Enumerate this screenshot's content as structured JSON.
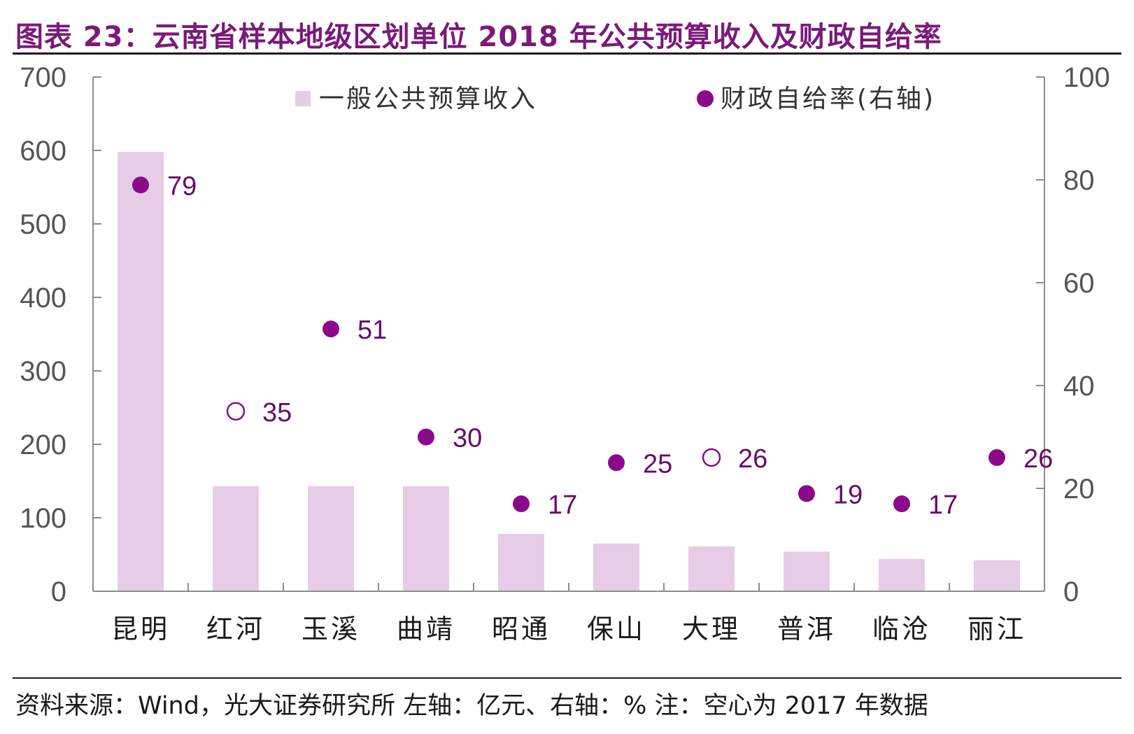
{
  "title": "图表 23：云南省样本地级区划单位 2018 年公共预算收入及财政自给率",
  "source": "资料来源：Wind，光大证券研究所   左轴：亿元、右轴：%   注：空心为 2017 年数据",
  "colors": {
    "bar": "#e6cce6",
    "dot": "#8b0a8b",
    "label": "#6a0a6a",
    "title": "#7a1a7a",
    "axis": "#8c8c8c",
    "tick_text": "#555555"
  },
  "chart_data": {
    "type": "bar",
    "categories": [
      "昆明",
      "红河",
      "玉溪",
      "曲靖",
      "昭通",
      "保山",
      "大理",
      "普洱",
      "临沧",
      "丽江"
    ],
    "legend_position": "top",
    "grid": false,
    "series": [
      {
        "name": "一般公共预算收入",
        "type": "bar",
        "axis": "left",
        "values": [
          598,
          143,
          143,
          143,
          78,
          65,
          61,
          54,
          44,
          42
        ]
      },
      {
        "name": "财政自给率(右轴)",
        "type": "scatter",
        "axis": "right",
        "values": [
          79,
          35,
          51,
          30,
          17,
          25,
          26,
          19,
          17,
          26
        ],
        "hollow": [
          false,
          true,
          false,
          false,
          false,
          false,
          true,
          false,
          false,
          false
        ]
      }
    ],
    "left_axis": {
      "ylim": [
        0,
        700
      ],
      "ticks": [
        0,
        100,
        200,
        300,
        400,
        500,
        600,
        700
      ]
    },
    "right_axis": {
      "ylim": [
        0,
        100
      ],
      "ticks": [
        0,
        20,
        40,
        60,
        80,
        100
      ]
    }
  }
}
